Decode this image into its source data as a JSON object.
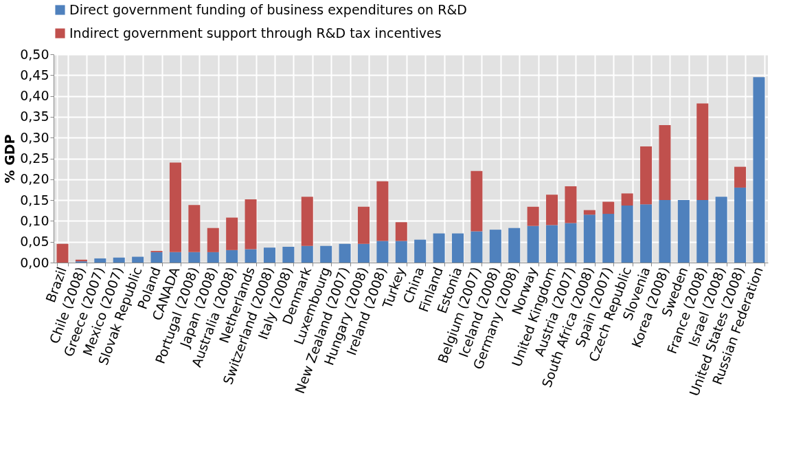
{
  "chart_data": {
    "type": "bar",
    "stacked": true,
    "ylabel": "% GDP",
    "legend": "top",
    "grid": true,
    "categories": [
      "Brazil",
      "Chile (2008)",
      "Greece (2007)",
      "Mexico (2007)",
      "Slovak Republic",
      "Poland",
      "CANADA",
      "Portugal (2008)",
      "Japan (2008)",
      "Australia (2008)",
      "Netherlands",
      "Switzerland (2008)",
      "Italy (2008)",
      "Denmark",
      "Luxembourg",
      "New Zealand (2007)",
      "Hungary (2008)",
      "Ireland (2008)",
      "Turkey",
      "China",
      "Finland",
      "Estonia",
      "Belgium (2007)",
      "Iceland (2008)",
      "Germany (2008)",
      "Norway",
      "United Kingdom",
      "Austria (2007)",
      "South Africa (2008)",
      "Spain (2007)",
      "Czech Republic",
      "Slovenia",
      "Korea (2008)",
      "Sweden",
      "France (2008)",
      "Israel (2008)",
      "United States (2008)",
      "Russian Federation"
    ],
    "series": [
      {
        "name": "Direct government funding of business expenditures on R&D",
        "color": "#4f81bd",
        "values": [
          0,
          0.003,
          0.01,
          0.012,
          0.014,
          0.025,
          0.025,
          0.025,
          0.025,
          0.03,
          0.032,
          0.036,
          0.038,
          0.04,
          0.04,
          0.045,
          0.045,
          0.052,
          0.052,
          0.055,
          0.07,
          0.07,
          0.075,
          0.079,
          0.083,
          0.088,
          0.09,
          0.095,
          0.115,
          0.117,
          0.137,
          0.14,
          0.15,
          0.15,
          0.15,
          0.158,
          0.18,
          0.445
        ]
      },
      {
        "name": "Indirect government support through R&D tax incentives",
        "color": "#c0504d",
        "values": [
          0.045,
          0.004,
          0,
          0,
          0,
          0.003,
          0.215,
          0.113,
          0.058,
          0.078,
          0.12,
          0,
          0,
          0.118,
          0,
          0,
          0.089,
          0.143,
          0.045,
          0,
          0,
          0,
          0.145,
          0,
          0,
          0.046,
          0.073,
          0.088,
          0.011,
          0.029,
          0.029,
          0.139,
          0.18,
          0,
          0.232,
          0,
          0.05,
          0
        ]
      }
    ],
    "ylim": [
      0,
      0.5
    ],
    "yticks": [
      {
        "value": 0,
        "label": "0,00"
      },
      {
        "value": 0.05,
        "label": "0,05"
      },
      {
        "value": 0.1,
        "label": "0,10"
      },
      {
        "value": 0.15,
        "label": "0,15"
      },
      {
        "value": 0.2,
        "label": "0,20"
      },
      {
        "value": 0.25,
        "label": "0,25"
      },
      {
        "value": 0.3,
        "label": "0,30"
      },
      {
        "value": 0.35,
        "label": "0,35"
      },
      {
        "value": 0.4,
        "label": "0,40"
      },
      {
        "value": 0.45,
        "label": "0,45"
      },
      {
        "value": 0.5,
        "label": "0,50"
      }
    ]
  }
}
